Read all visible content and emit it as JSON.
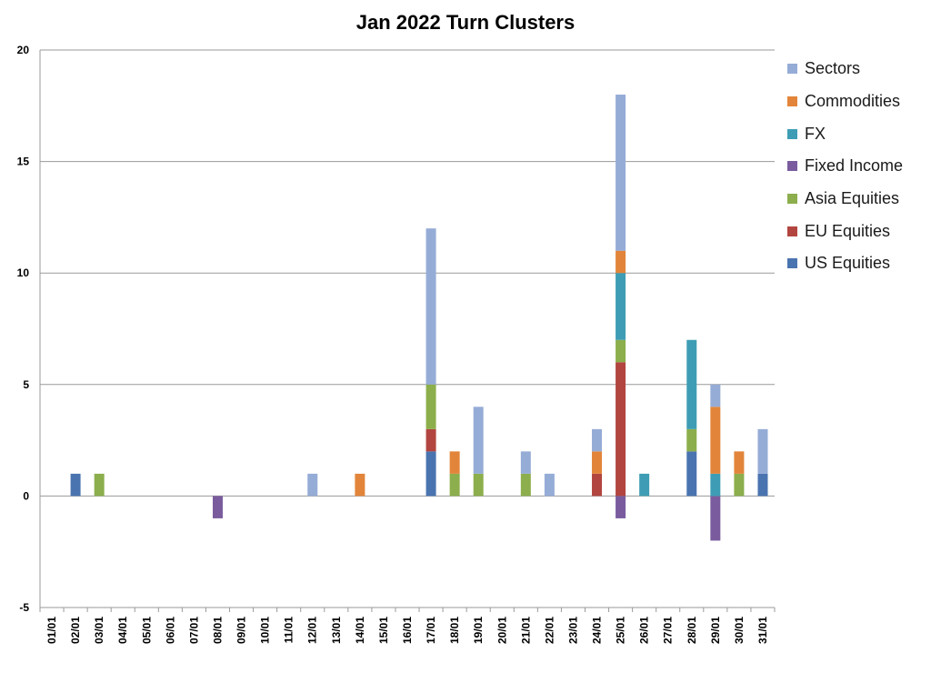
{
  "chart_data": {
    "type": "bar",
    "stacked": true,
    "title": "Jan 2022 Turn Clusters",
    "xlabel": "",
    "ylabel": "",
    "ylim": [
      -5,
      20
    ],
    "yticks": [
      "-5",
      "0",
      "5",
      "10",
      "15",
      "20"
    ],
    "grid": true,
    "legend_position": "right",
    "categories": [
      "01/01",
      "02/01",
      "03/01",
      "04/01",
      "05/01",
      "06/01",
      "07/01",
      "08/01",
      "09/01",
      "10/01",
      "11/01",
      "12/01",
      "13/01",
      "14/01",
      "15/01",
      "16/01",
      "17/01",
      "18/01",
      "19/01",
      "20/01",
      "21/01",
      "22/01",
      "23/01",
      "24/01",
      "25/01",
      "26/01",
      "27/01",
      "28/01",
      "29/01",
      "30/01",
      "31/01"
    ],
    "series": [
      {
        "name": "US Equities",
        "color": "#4a74b0",
        "values": [
          0,
          1,
          0,
          0,
          0,
          0,
          0,
          0,
          0,
          0,
          0,
          0,
          0,
          0,
          0,
          0,
          2,
          0,
          0,
          0,
          0,
          0,
          0,
          0,
          0,
          0,
          0,
          2,
          0,
          0,
          1
        ]
      },
      {
        "name": "EU Equities",
        "color": "#b2453f",
        "values": [
          0,
          0,
          0,
          0,
          0,
          0,
          0,
          0,
          0,
          0,
          0,
          0,
          0,
          0,
          0,
          0,
          1,
          0,
          0,
          0,
          0,
          0,
          0,
          1,
          6,
          0,
          0,
          0,
          0,
          0,
          0
        ]
      },
      {
        "name": "Asia Equities",
        "color": "#8cae4c",
        "values": [
          0,
          0,
          1,
          0,
          0,
          0,
          0,
          0,
          0,
          0,
          0,
          0,
          0,
          0,
          0,
          0,
          2,
          1,
          1,
          0,
          1,
          0,
          0,
          0,
          1,
          0,
          0,
          1,
          0,
          1,
          0
        ]
      },
      {
        "name": "Fixed Income",
        "color": "#7a5c9e",
        "values": [
          0,
          0,
          0,
          0,
          0,
          0,
          0,
          -1,
          0,
          0,
          0,
          0,
          0,
          0,
          0,
          0,
          0,
          0,
          0,
          0,
          0,
          0,
          0,
          0,
          -1,
          0,
          0,
          0,
          -2,
          0,
          0
        ]
      },
      {
        "name": "FX",
        "color": "#3e9db4",
        "values": [
          0,
          0,
          0,
          0,
          0,
          0,
          0,
          0,
          0,
          0,
          0,
          0,
          0,
          0,
          0,
          0,
          0,
          0,
          0,
          0,
          0,
          0,
          0,
          0,
          3,
          1,
          0,
          4,
          1,
          0,
          0
        ]
      },
      {
        "name": "Commodities",
        "color": "#e2853a",
        "values": [
          0,
          0,
          0,
          0,
          0,
          0,
          0,
          0,
          0,
          0,
          0,
          0,
          0,
          1,
          0,
          0,
          0,
          1,
          0,
          0,
          0,
          0,
          0,
          1,
          1,
          0,
          0,
          0,
          3,
          1,
          0
        ]
      },
      {
        "name": "Sectors",
        "color": "#95acd6",
        "values": [
          0,
          0,
          0,
          0,
          0,
          0,
          0,
          0,
          0,
          0,
          0,
          1,
          0,
          0,
          0,
          0,
          7,
          0,
          3,
          0,
          1,
          1,
          0,
          1,
          7,
          0,
          0,
          0,
          1,
          0,
          2
        ]
      }
    ]
  }
}
